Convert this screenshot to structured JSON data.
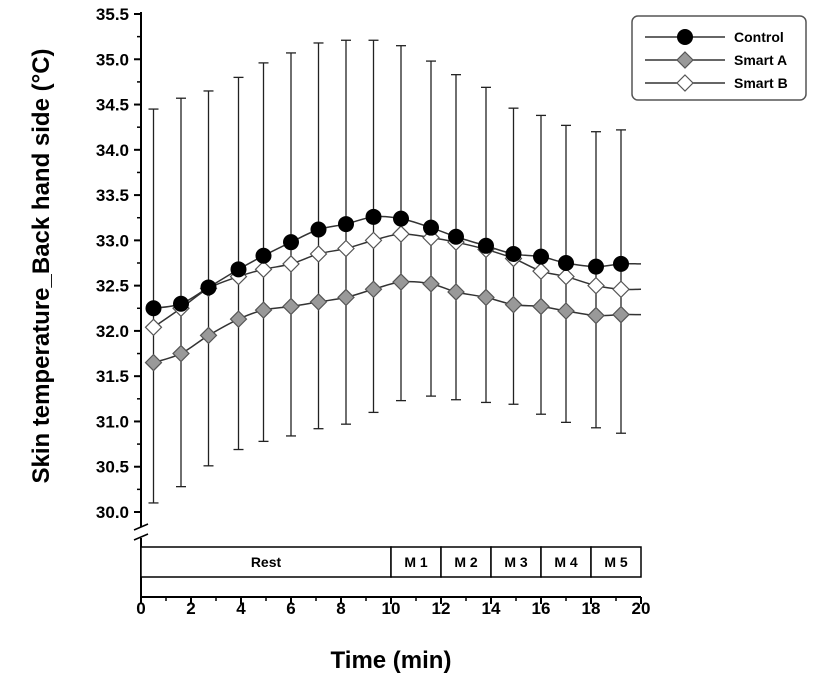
{
  "chart_data": {
    "type": "line",
    "xlabel": "Time (min)",
    "ylabel": "Skin temperature_Back hand side (°C)",
    "xlim": [
      0,
      20
    ],
    "ylim": [
      30.0,
      35.5
    ],
    "xticks": [
      "0",
      "2",
      "4",
      "6",
      "8",
      "10",
      "12",
      "14",
      "16",
      "18",
      "20"
    ],
    "yticks": [
      "30.0",
      "30.5",
      "31.0",
      "31.5",
      "32.0",
      "32.5",
      "33.0",
      "33.5",
      "34.0",
      "34.5",
      "35.0",
      "35.5"
    ],
    "x": [
      0.5,
      1.6,
      2.7,
      3.9,
      4.9,
      6.0,
      7.1,
      8.2,
      9.3,
      10.4,
      11.6,
      12.6,
      13.8,
      14.9,
      16.0,
      17.0,
      18.2,
      19.2
    ],
    "series": [
      {
        "name": "Control",
        "marker": "circle",
        "fill": "#000000",
        "values": [
          32.25,
          32.3,
          32.48,
          32.68,
          32.83,
          32.98,
          33.12,
          33.18,
          33.26,
          33.24,
          33.14,
          33.04,
          32.94,
          32.85,
          32.82,
          32.75,
          32.71,
          32.74
        ],
        "error_upper": [
          34.45,
          34.57,
          34.65,
          34.8,
          34.96,
          35.07,
          35.18,
          35.21,
          35.21,
          35.15,
          34.98,
          34.83,
          34.69,
          34.46,
          34.38,
          34.27,
          34.2,
          34.22
        ],
        "error_lower": [
          30.1,
          30.28,
          30.51,
          30.69,
          30.78,
          30.84,
          30.92,
          30.97,
          31.1,
          31.23,
          31.28,
          31.24,
          31.21,
          31.19,
          31.08,
          30.99,
          30.93,
          30.87
        ]
      },
      {
        "name": "Smart A",
        "marker": "diamond",
        "fill": "#999999",
        "values": [
          31.65,
          31.75,
          31.95,
          32.13,
          32.23,
          32.27,
          32.32,
          32.37,
          32.46,
          32.54,
          32.52,
          32.43,
          32.37,
          32.29,
          32.27,
          32.22,
          32.17,
          32.18
        ]
      },
      {
        "name": "Smart B",
        "marker": "diamond",
        "fill": "#ffffff",
        "values": [
          32.04,
          32.25,
          32.47,
          32.6,
          32.68,
          32.74,
          32.85,
          32.91,
          33.0,
          33.07,
          33.03,
          32.98,
          32.9,
          32.8,
          32.66,
          32.6,
          32.5,
          32.46
        ]
      }
    ],
    "legend": {
      "placement": "top-right",
      "entries": [
        "Control",
        "Smart A",
        "Smart B"
      ]
    },
    "phases": [
      {
        "label": "Rest",
        "start": 0,
        "end": 10
      },
      {
        "label": "M 1",
        "start": 10,
        "end": 12
      },
      {
        "label": "M 2",
        "start": 12,
        "end": 14
      },
      {
        "label": "M 3",
        "start": 14,
        "end": 16
      },
      {
        "label": "M 4",
        "start": 16,
        "end": 18
      },
      {
        "label": "M 5",
        "start": 18,
        "end": 20
      }
    ],
    "grid": false
  }
}
